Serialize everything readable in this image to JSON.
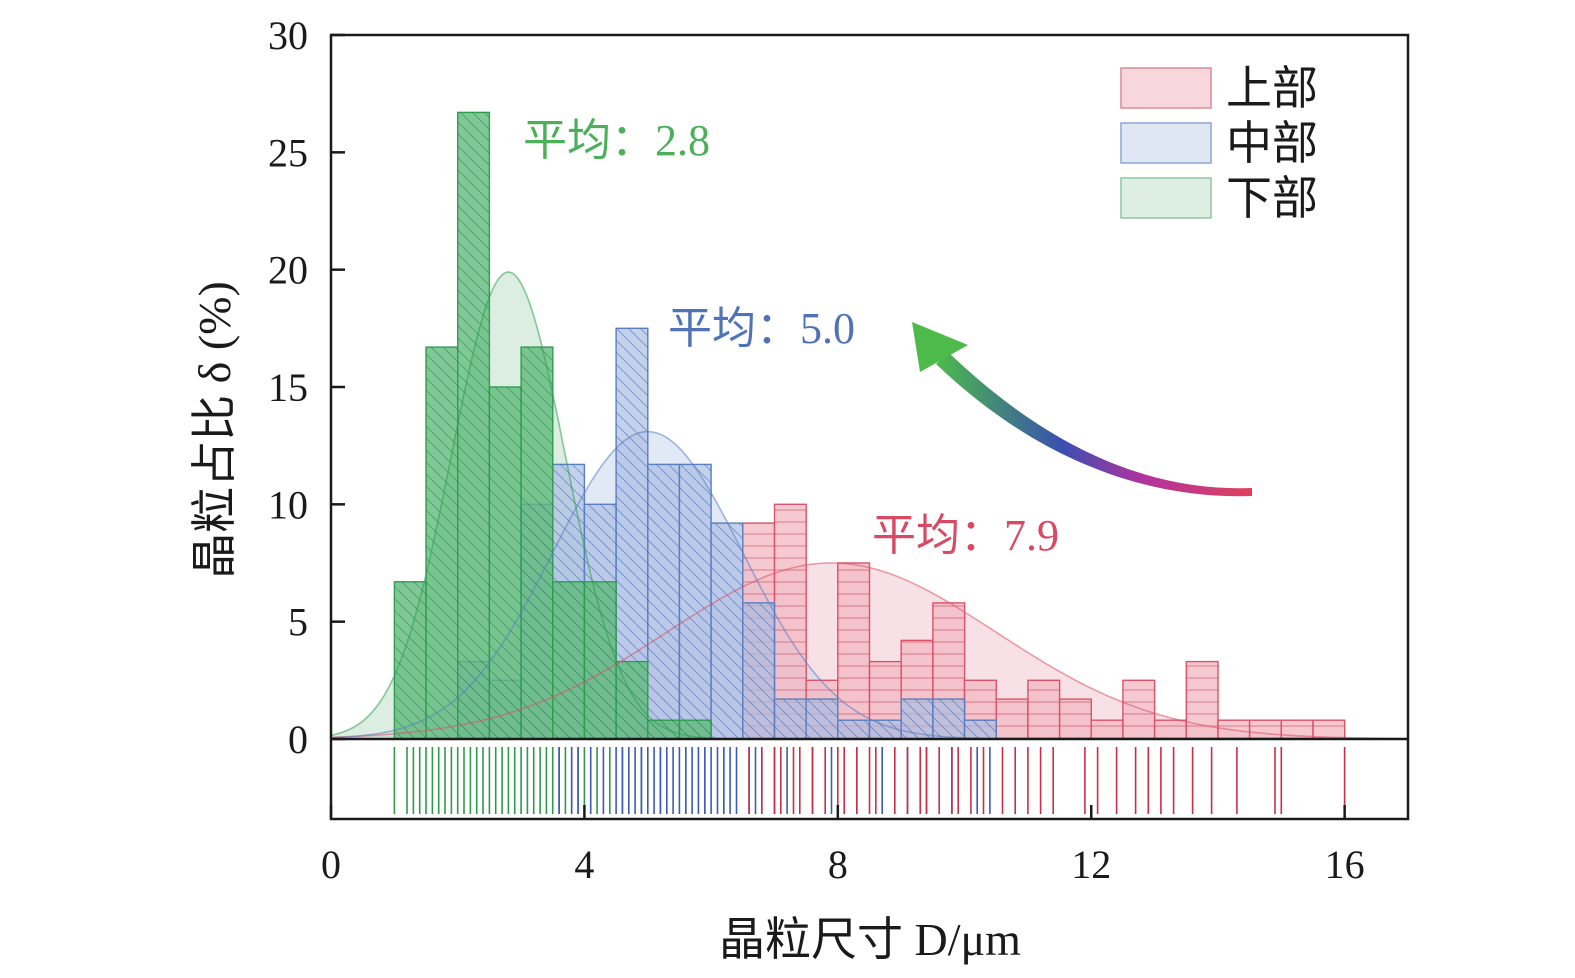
{
  "chart_data": {
    "type": "bar",
    "subtype": "overlaid histogram with normal fits and rug plot",
    "xlabel": "晶粒尺寸 D/μm",
    "ylabel": "晶粒占比 δ (%)",
    "xlim": [
      0,
      17
    ],
    "ylim": [
      0,
      30
    ],
    "xticks": [
      "0",
      "4",
      "8",
      "12",
      "16"
    ],
    "xtick_values": [
      0,
      4,
      8,
      12,
      16
    ],
    "yticks": [
      "0",
      "5",
      "10",
      "15",
      "20",
      "25",
      "30"
    ],
    "ytick_values": [
      0,
      5,
      10,
      15,
      20,
      25,
      30
    ],
    "grid": false,
    "legend_position": "top-right",
    "bin_width": 0.5,
    "series": [
      {
        "name": "上部",
        "color": "#d9536a",
        "fill": "#f3b7c2",
        "hatch": "horizontal",
        "mean_label": "平均：7.9",
        "mean": 7.9,
        "fit_sd": 2.6,
        "fit_peak": 7.5,
        "bins": [
          [
            6.5,
            9.2
          ],
          [
            7.0,
            10.0
          ],
          [
            7.5,
            2.5
          ],
          [
            8.0,
            7.5
          ],
          [
            8.5,
            3.3
          ],
          [
            9.0,
            4.2
          ],
          [
            9.5,
            5.8
          ],
          [
            10.0,
            2.5
          ],
          [
            10.5,
            1.7
          ],
          [
            11.0,
            2.5
          ],
          [
            11.5,
            1.7
          ],
          [
            12.0,
            0.8
          ],
          [
            12.5,
            2.5
          ],
          [
            13.0,
            0.8
          ],
          [
            13.5,
            3.3
          ],
          [
            14.0,
            0.8
          ],
          [
            14.5,
            0.8
          ],
          [
            15.0,
            0.8
          ],
          [
            15.5,
            0.8
          ]
        ],
        "rug": [
          6.6,
          6.8,
          7.0,
          7.1,
          7.3,
          7.4,
          7.6,
          7.8,
          8.0,
          8.1,
          8.3,
          8.5,
          8.6,
          8.9,
          9.1,
          9.3,
          9.4,
          9.6,
          9.8,
          9.9,
          10.1,
          10.3,
          10.6,
          10.8,
          11.0,
          11.2,
          11.4,
          11.9,
          12.1,
          12.4,
          12.7,
          12.9,
          13.1,
          13.3,
          13.6,
          13.9,
          14.3,
          14.9,
          15.0,
          16.0
        ]
      },
      {
        "name": "中部",
        "color": "#5a7fc0",
        "fill": "#a9bde3",
        "hatch": "diagonal",
        "mean_label": "平均：5.0",
        "mean": 5.0,
        "fit_sd": 1.5,
        "fit_peak": 13.1,
        "bins": [
          [
            2.0,
            3.3
          ],
          [
            2.5,
            2.5
          ],
          [
            3.0,
            10.0
          ],
          [
            3.5,
            11.7
          ],
          [
            4.0,
            10.0
          ],
          [
            4.5,
            17.5
          ],
          [
            5.0,
            11.7
          ],
          [
            5.5,
            11.7
          ],
          [
            6.0,
            9.2
          ],
          [
            6.5,
            5.8
          ],
          [
            7.0,
            1.7
          ],
          [
            7.5,
            1.7
          ],
          [
            8.0,
            0.8
          ],
          [
            8.5,
            0.8
          ],
          [
            9.0,
            1.7
          ],
          [
            9.5,
            1.7
          ],
          [
            10.0,
            0.8
          ]
        ],
        "rug": [
          3.6,
          3.8,
          3.9,
          4.1,
          4.3,
          4.5,
          4.6,
          4.7,
          4.8,
          4.9,
          5.0,
          5.1,
          5.2,
          5.3,
          5.4,
          5.5,
          5.6,
          5.7,
          5.8,
          5.9,
          6.0,
          6.1,
          6.2,
          6.3,
          6.4,
          6.6,
          6.7,
          6.8,
          7.0,
          7.2,
          7.6,
          7.9,
          8.3,
          8.7,
          9.1,
          9.4,
          9.8,
          10.2,
          10.4
        ]
      },
      {
        "name": "下部",
        "color": "#2e9e4f",
        "fill": "#5cb87a",
        "hatch": "diagonal",
        "mean_label": "平均：2.8",
        "mean": 2.8,
        "fit_sd": 0.9,
        "fit_peak": 19.9,
        "bins": [
          [
            1.0,
            6.7
          ],
          [
            1.5,
            16.7
          ],
          [
            2.0,
            26.7
          ],
          [
            2.5,
            15.0
          ],
          [
            3.0,
            16.7
          ],
          [
            3.5,
            6.7
          ],
          [
            4.0,
            6.7
          ],
          [
            4.5,
            3.3
          ],
          [
            5.0,
            0.8
          ],
          [
            5.5,
            0.8
          ]
        ],
        "rug": [
          1.0,
          1.2,
          1.3,
          1.4,
          1.5,
          1.6,
          1.7,
          1.8,
          1.9,
          2.0,
          2.1,
          2.2,
          2.3,
          2.4,
          2.5,
          2.6,
          2.7,
          2.8,
          2.9,
          3.0,
          3.1,
          3.2,
          3.3,
          3.4,
          3.5,
          3.6,
          3.7,
          3.8,
          3.9,
          4.0,
          4.2,
          4.4,
          4.6,
          4.9,
          5.2,
          5.6,
          5.9,
          6.2
        ]
      }
    ],
    "annotation_arrow": {
      "from_color": "#e0405a",
      "mid_color": "#3a4fb0",
      "to_color": "#4dbb4a"
    }
  }
}
